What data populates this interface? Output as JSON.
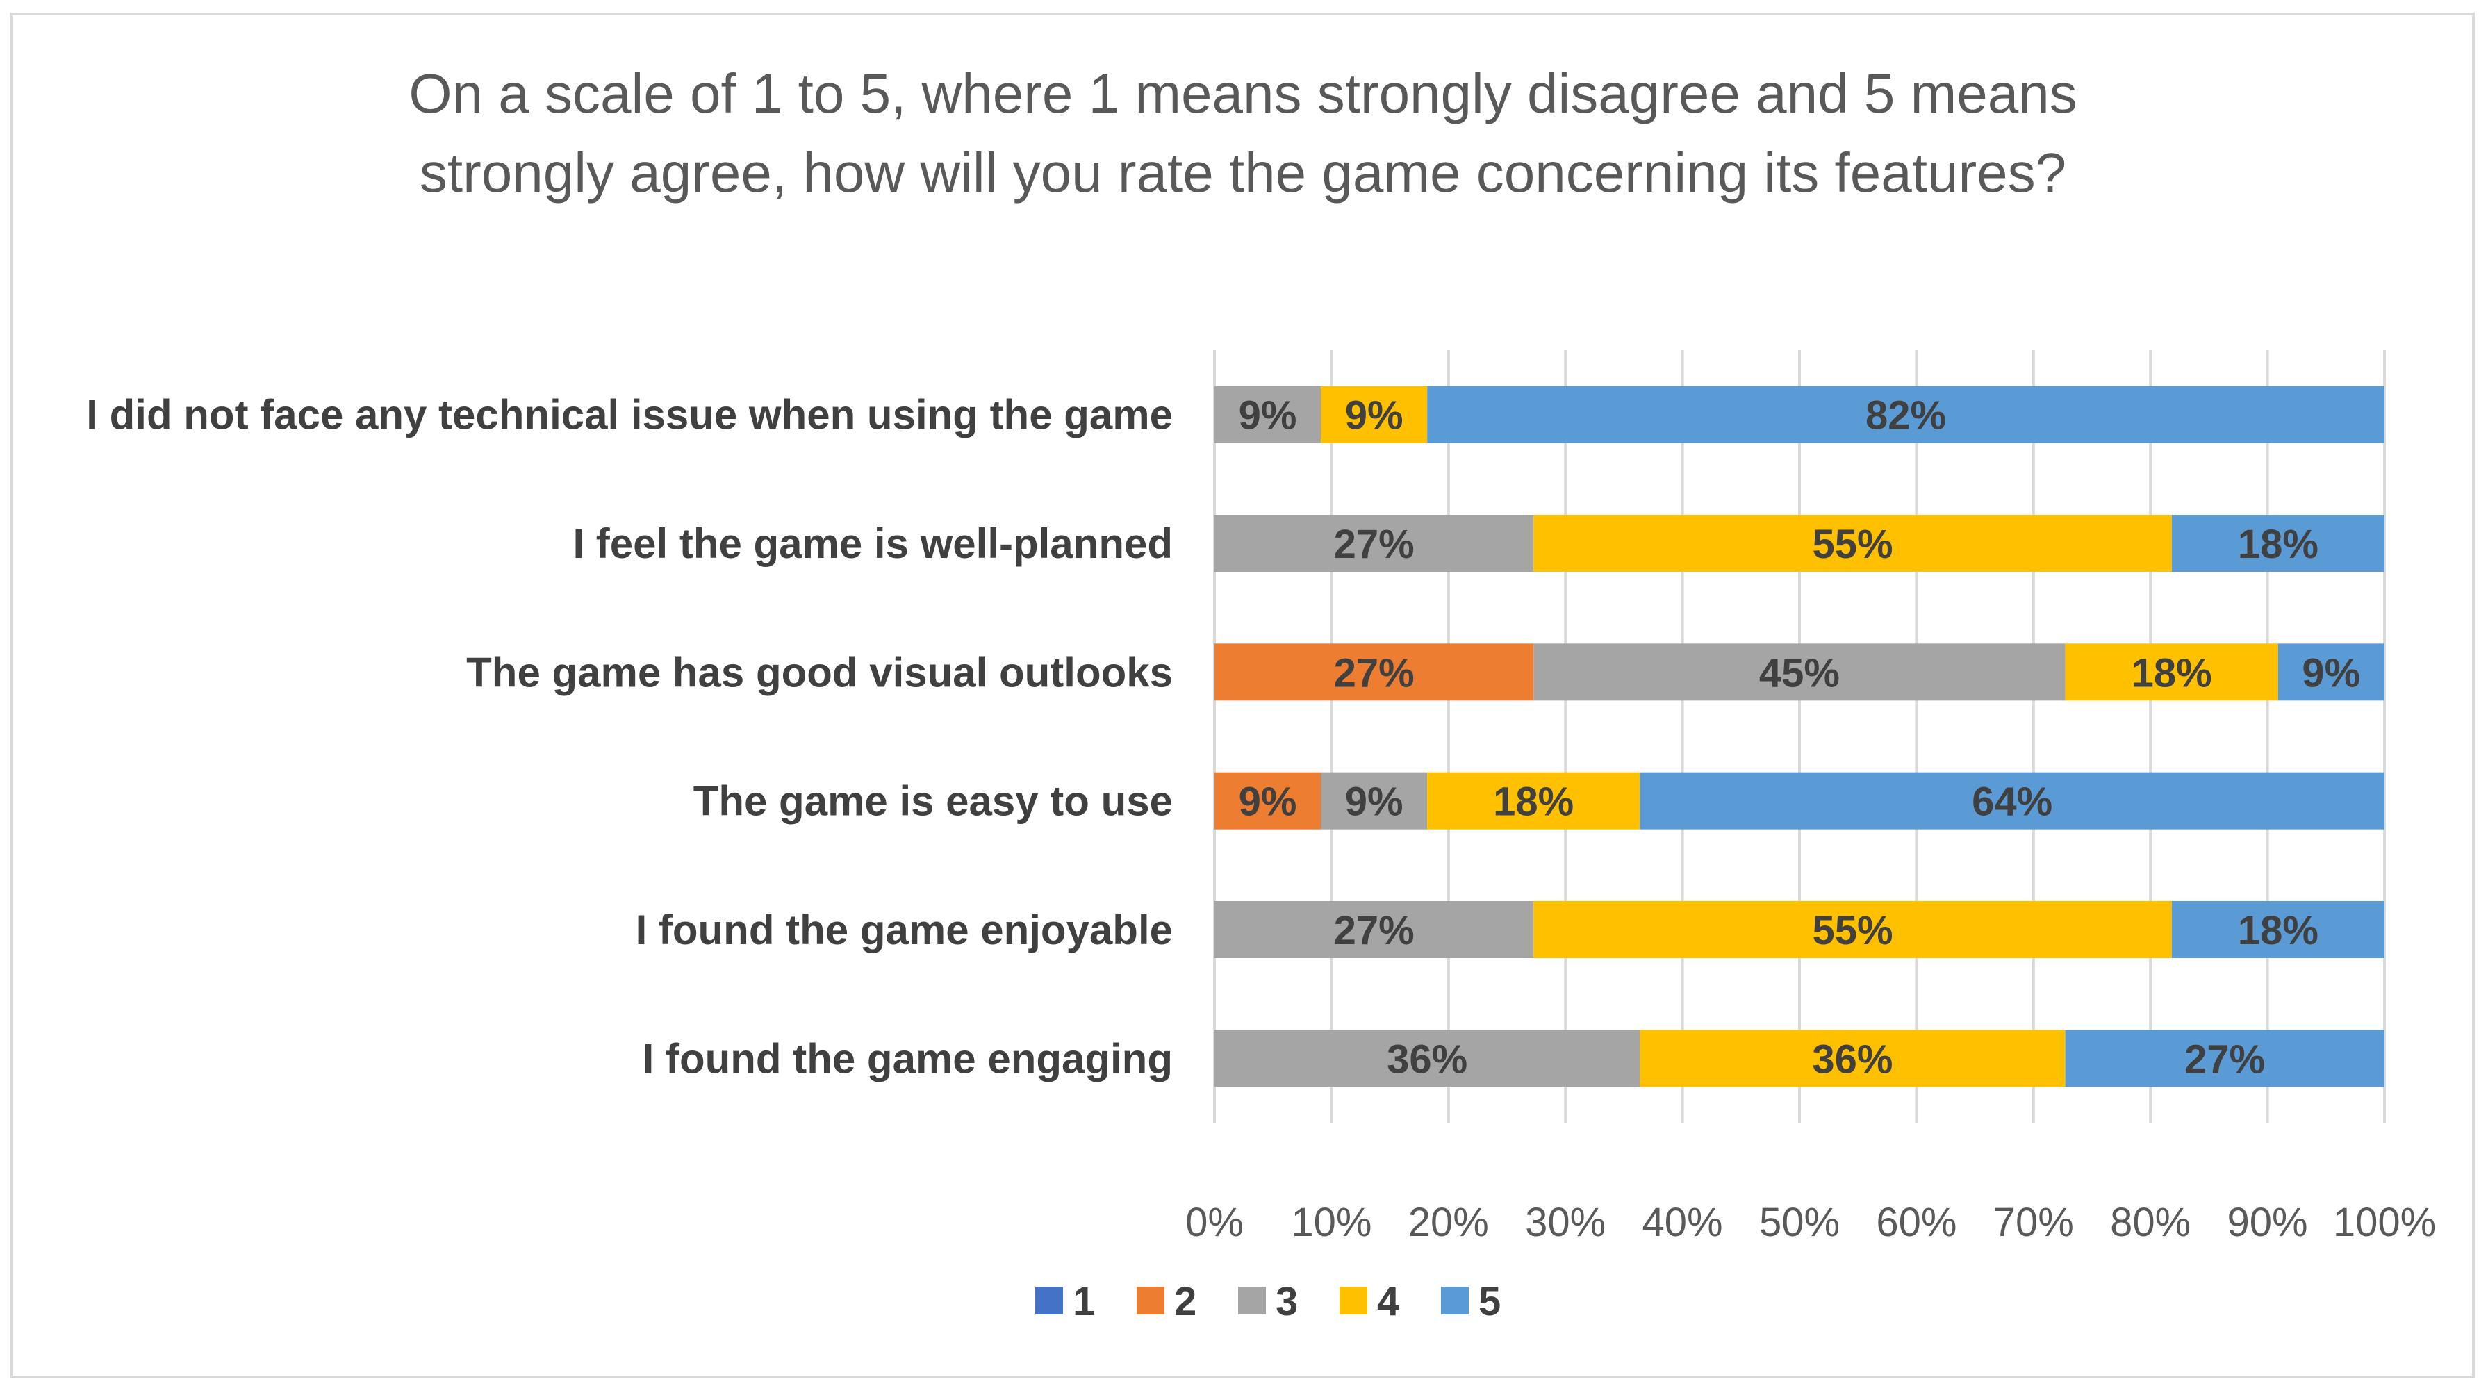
{
  "chart_data": {
    "type": "bar",
    "orientation": "horizontal",
    "stacked": "percent",
    "title_lines": [
      "On a scale of 1 to 5, where 1 means strongly disagree and 5 means",
      "strongly agree, how will you rate the game concerning its features?"
    ],
    "categories": [
      "I did not face any technical issue when using the game",
      "I feel the game is well-planned",
      "The game has good visual outlooks",
      "The game is easy to use",
      "I found the game enjoyable",
      "I found the game engaging"
    ],
    "series": [
      {
        "name": "1",
        "color": "#4472C4",
        "values": [
          0,
          0,
          0,
          0,
          0,
          0
        ],
        "labels": [
          "",
          "",
          "",
          "",
          "",
          ""
        ]
      },
      {
        "name": "2",
        "color": "#ED7D31",
        "values": [
          0,
          0,
          27.27,
          9.09,
          0,
          0
        ],
        "labels": [
          "",
          "",
          "27%",
          "9%",
          "",
          ""
        ]
      },
      {
        "name": "3",
        "color": "#A5A5A5",
        "values": [
          9.09,
          27.27,
          45.45,
          9.09,
          27.27,
          36.36
        ],
        "labels": [
          "9%",
          "27%",
          "45%",
          "9%",
          "27%",
          "36%"
        ]
      },
      {
        "name": "4",
        "color": "#FFC000",
        "values": [
          9.09,
          54.55,
          18.18,
          18.18,
          54.55,
          36.36
        ],
        "labels": [
          "9%",
          "55%",
          "18%",
          "18%",
          "55%",
          "36%"
        ]
      },
      {
        "name": "5",
        "color": "#5B9BD5",
        "values": [
          81.82,
          18.18,
          9.09,
          63.64,
          18.18,
          27.27
        ],
        "labels": [
          "82%",
          "18%",
          "9%",
          "64%",
          "18%",
          "27%"
        ]
      }
    ],
    "xlim": [
      0,
      100
    ],
    "x_ticks": [
      "0%",
      "10%",
      "20%",
      "30%",
      "40%",
      "50%",
      "60%",
      "70%",
      "80%",
      "90%",
      "100%"
    ],
    "grid": true,
    "legend_position": "bottom"
  }
}
